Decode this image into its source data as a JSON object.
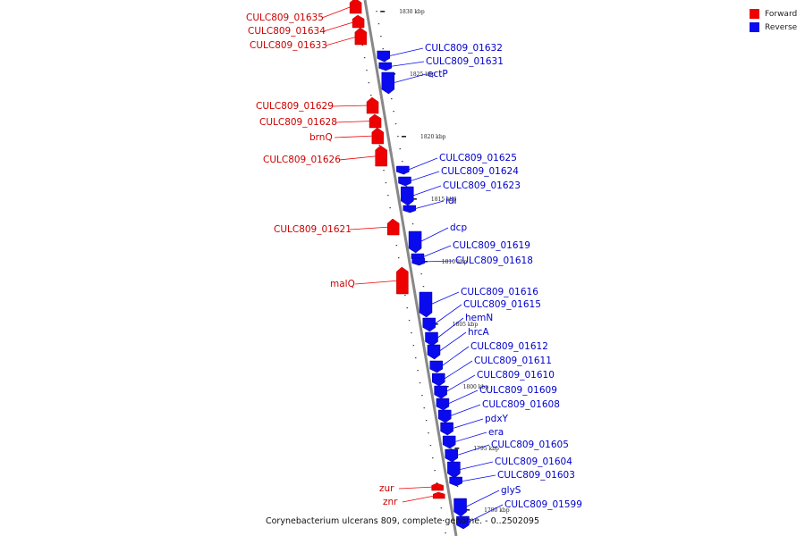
{
  "colors": {
    "forward": "#ee0000",
    "reverse": "#0a0aee",
    "backbone": "#888888"
  },
  "legend": [
    {
      "label": "Forward",
      "color": "#ee0000"
    },
    {
      "label": "Reverse",
      "color": "#0a0aee"
    }
  ],
  "caption": "Corynebacterium ulcerans 809, complete genome. - 0..2502095",
  "scale_labels": [
    "1830 kbp",
    "1825 kbp",
    "1820 kbp",
    "1815 kbp",
    "1810 kbp",
    "1805 kbp",
    "1800 kbp",
    "1795 kbp",
    "1790 kbp"
  ],
  "forward_genes": [
    "CULC809_01635",
    "CULC809_01634",
    "CULC809_01633",
    "CULC809_01629",
    "CULC809_01628",
    "brnQ",
    "CULC809_01626",
    "CULC809_01621",
    "malQ",
    "zur",
    "znr"
  ],
  "reverse_genes": [
    "CULC809_01632",
    "CULC809_01631",
    "ectP",
    "CULC809_01625",
    "CULC809_01624",
    "CULC809_01623",
    "idi",
    "dcp",
    "CULC809_01619",
    "CULC809_01618",
    "CULC809_01616",
    "CULC809_01615",
    "hemN",
    "hrcA",
    "CULC809_01612",
    "CULC809_01611",
    "CULC809_01610",
    "CULC809_01609",
    "CULC809_01608",
    "pdxY",
    "era",
    "CULC809_01605",
    "CULC809_01604",
    "CULC809_01603",
    "glyS",
    "CULC809_01599"
  ]
}
